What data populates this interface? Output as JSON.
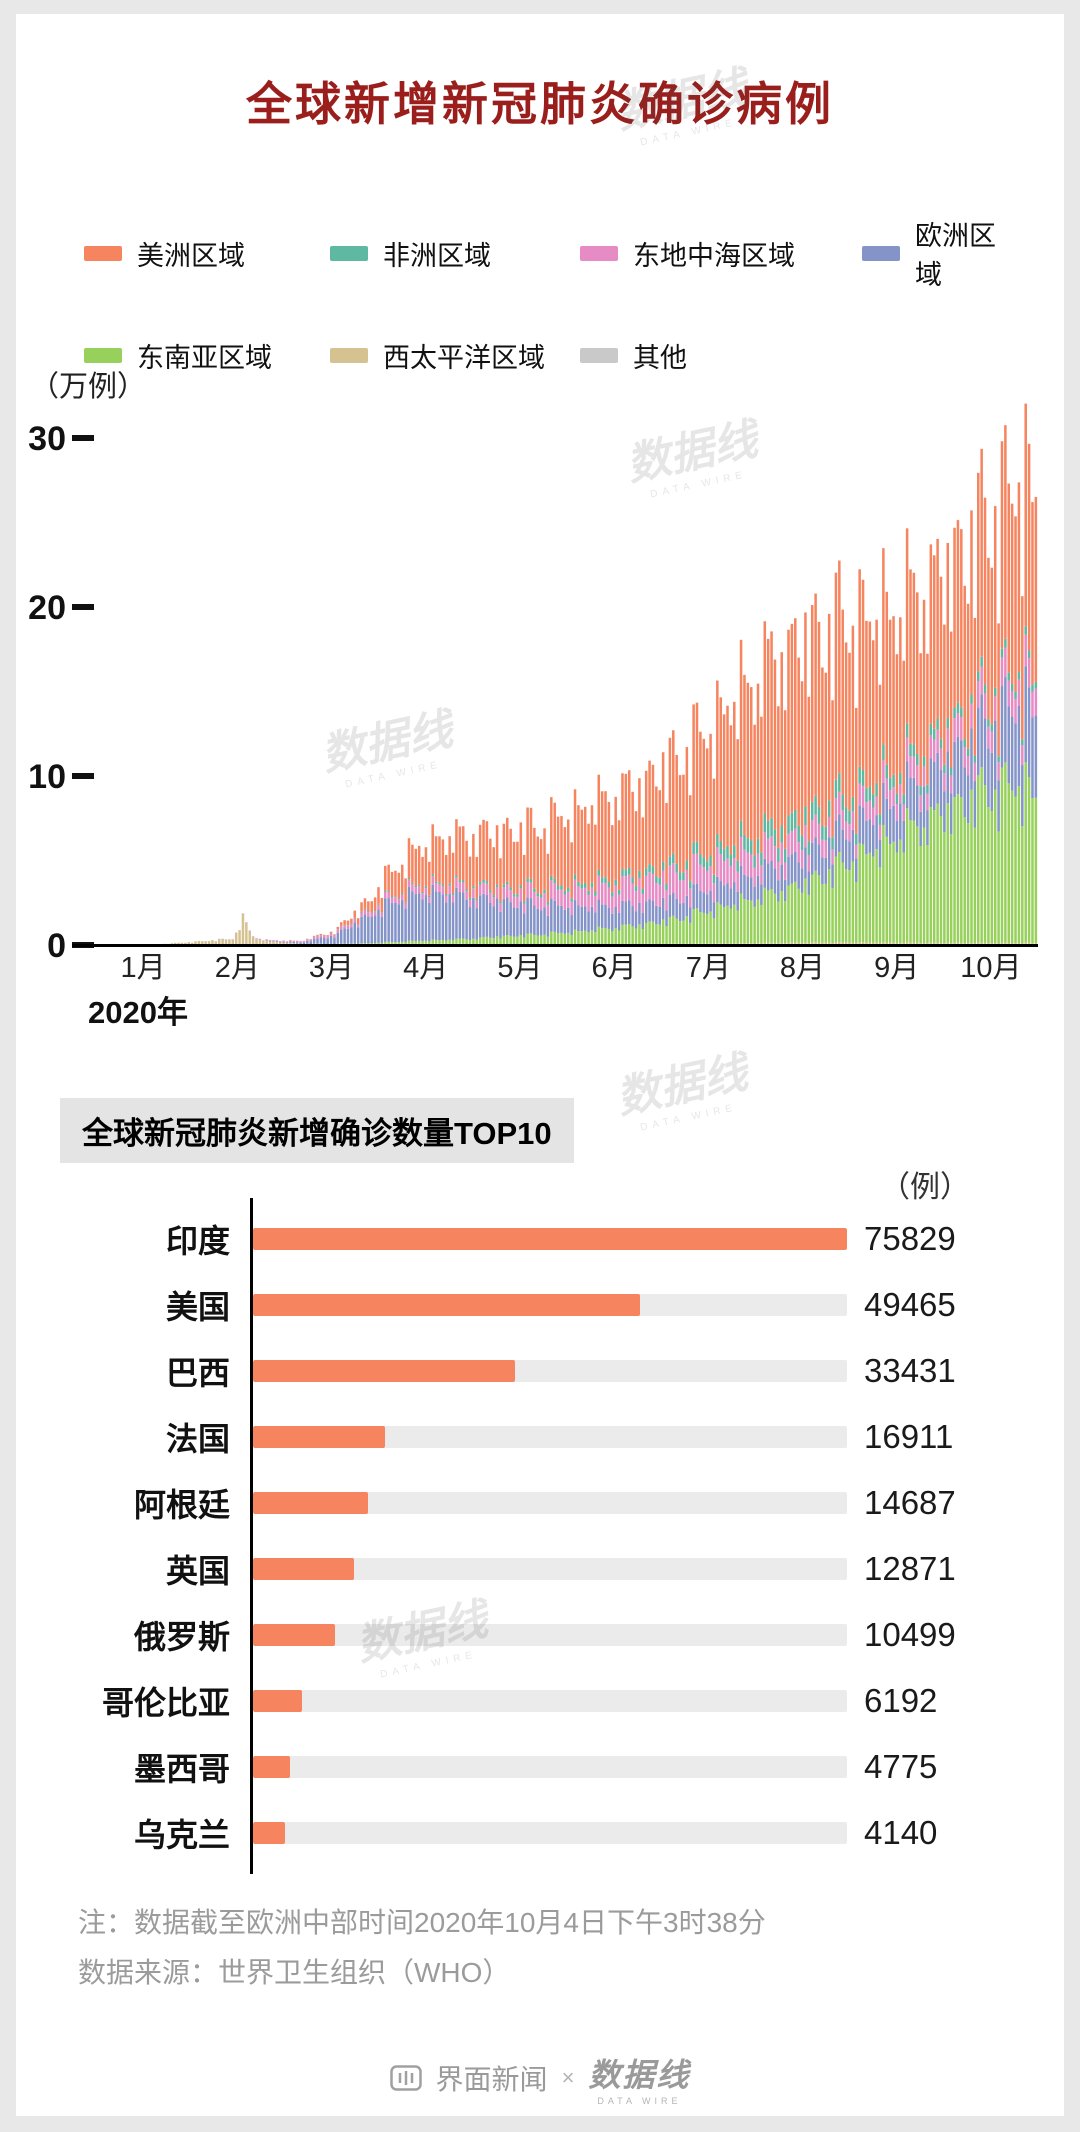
{
  "legend": {
    "row1": [
      "美洲区域",
      "非洲区域",
      "东地中海区域",
      "欧洲区域"
    ],
    "row2": [
      "东南亚区域",
      "西太平洋区域",
      "其他"
    ]
  },
  "chart_data": [
    {
      "type": "bar",
      "stacked": true,
      "title": "全球新增新冠肺炎确诊病例",
      "unit_label": "（万例）",
      "value_unit": "万例 (10,000 cases per day)",
      "x_axis_note": "2020年",
      "x_tick_labels": [
        "1月",
        "2月",
        "3月",
        "4月",
        "5月",
        "6月",
        "7月",
        "8月",
        "9月",
        "10月"
      ],
      "yticks": [
        0,
        10,
        20,
        30
      ],
      "ylim": [
        0,
        33
      ],
      "grid": false,
      "legend_position": "top",
      "days_total": 278,
      "sample_days": [
        0,
        10,
        20,
        30,
        40,
        43,
        46,
        50,
        60,
        70,
        80,
        90,
        100,
        110,
        120,
        130,
        140,
        150,
        160,
        170,
        180,
        190,
        200,
        210,
        220,
        230,
        240,
        250,
        260,
        270,
        277
      ],
      "stack_order_bottom_to_top": [
        "西太平洋区域",
        "东南亚区域",
        "欧洲区域",
        "东地中海区域",
        "非洲区域",
        "美洲区域",
        "其他"
      ],
      "series": [
        {
          "name": "美洲区域",
          "color": "#f5845f",
          "values": [
            0,
            0,
            0,
            0,
            0,
            0,
            0,
            0,
            0.01,
            0.08,
            0.6,
            1.8,
            2.6,
            3.0,
            3.3,
            3.6,
            4.2,
            4.8,
            5.2,
            6.2,
            7.2,
            8.8,
            10.0,
            10.5,
            10.4,
            9.6,
            9.4,
            9.6,
            10.2,
            10.9,
            11.2
          ]
        },
        {
          "name": "非洲区域",
          "color": "#5fb8a2",
          "values": [
            0,
            0,
            0,
            0,
            0,
            0,
            0,
            0,
            0,
            0.02,
            0.04,
            0.06,
            0.1,
            0.12,
            0.15,
            0.2,
            0.26,
            0.32,
            0.4,
            0.5,
            0.62,
            0.8,
            1.0,
            1.0,
            0.9,
            0.8,
            0.68,
            0.58,
            0.5,
            0.45,
            0.42
          ]
        },
        {
          "name": "东地中海区域",
          "color": "#e78bc5",
          "values": [
            0,
            0,
            0,
            0,
            0.01,
            0.02,
            0.03,
            0.05,
            0.08,
            0.15,
            0.25,
            0.35,
            0.45,
            0.55,
            0.65,
            0.8,
            1.0,
            1.2,
            1.4,
            1.5,
            1.5,
            1.4,
            1.3,
            1.2,
            1.1,
            1.1,
            1.15,
            1.25,
            1.35,
            1.5,
            1.6
          ]
        },
        {
          "name": "欧洲区域",
          "color": "#8493c8",
          "values": [
            0,
            0,
            0,
            0,
            0.01,
            0.01,
            0.01,
            0.02,
            0.08,
            0.5,
            1.6,
            2.6,
            2.8,
            2.4,
            2.0,
            1.7,
            1.5,
            1.3,
            1.2,
            1.15,
            1.25,
            1.35,
            1.5,
            1.7,
            1.85,
            2.0,
            2.3,
            2.8,
            3.5,
            4.5,
            5.0
          ]
        },
        {
          "name": "东南亚区域",
          "color": "#97d15c",
          "values": [
            0,
            0,
            0,
            0,
            0,
            0.01,
            0.01,
            0.01,
            0.01,
            0.02,
            0.05,
            0.12,
            0.2,
            0.3,
            0.45,
            0.55,
            0.7,
            0.9,
            1.1,
            1.4,
            1.9,
            2.4,
            2.9,
            3.5,
            4.5,
            5.5,
            6.6,
            7.6,
            8.6,
            9.2,
            8.8
          ]
        },
        {
          "name": "西太平洋区域",
          "color": "#d6c291",
          "values": [
            0.01,
            0.02,
            0.06,
            0.2,
            0.35,
            1.45,
            0.45,
            0.2,
            0.06,
            0.04,
            0.05,
            0.08,
            0.08,
            0.06,
            0.05,
            0.05,
            0.05,
            0.05,
            0.06,
            0.07,
            0.08,
            0.1,
            0.12,
            0.14,
            0.15,
            0.14,
            0.13,
            0.12,
            0.12,
            0.12,
            0.12
          ]
        },
        {
          "name": "其他",
          "color": "#c9c9c9",
          "values": [
            0,
            0,
            0.01,
            0.01,
            0.01,
            0.01,
            0.01,
            0.01,
            0.01,
            0.01,
            0.01,
            0.01,
            0.01,
            0.01,
            0.01,
            0.01,
            0.01,
            0.01,
            0.01,
            0.01,
            0.01,
            0.01,
            0.01,
            0.01,
            0.01,
            0.01,
            0.01,
            0.01,
            0.01,
            0.01,
            0.01
          ]
        }
      ]
    },
    {
      "type": "bar",
      "orientation": "horizontal",
      "title": "全球新冠肺炎新增确诊数量TOP10",
      "unit_label": "（例）",
      "categories": [
        "印度",
        "美国",
        "巴西",
        "法国",
        "阿根廷",
        "英国",
        "俄罗斯",
        "哥伦比亚",
        "墨西哥",
        "乌克兰"
      ],
      "values": [
        75829,
        49465,
        33431,
        16911,
        14687,
        12871,
        10499,
        6192,
        4775,
        4140
      ],
      "bar_color": "#f5845f",
      "track_color": "#ebebeb",
      "xlim": [
        0,
        75829
      ]
    }
  ],
  "notes": {
    "line1": "注：数据截至欧洲中部时间2020年10月4日下午3时38分",
    "line2": "数据来源：世界卫生组织（WHO）"
  },
  "footer": {
    "brand_left": "界面新闻",
    "separator": "×",
    "brand_right": "数据线"
  },
  "watermark": {
    "text": "数据线",
    "subtext": "DATA WIRE"
  }
}
